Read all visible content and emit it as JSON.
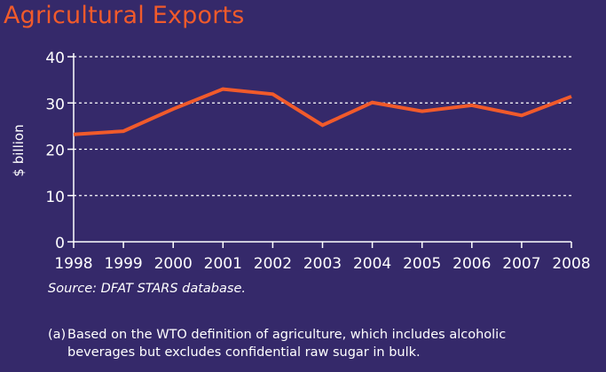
{
  "title": "Agricultural Exports",
  "source": "Source: DFAT STARS database.",
  "footnote": {
    "marker": "(a)",
    "line1": "Based on the WTO definition of agriculture, which includes alcoholic",
    "line2": "beverages but excludes confidential raw sugar in bulk."
  },
  "colors": {
    "background": "#35296a",
    "accent": "#f15a2b",
    "text": "#ffffff"
  },
  "chart_data": {
    "type": "line",
    "title": "Agricultural Exports",
    "ylabel": "$ billion",
    "xlabel": "",
    "x": [
      "1998",
      "1999",
      "2000",
      "2001",
      "2002",
      "2003",
      "2004",
      "2005",
      "2006",
      "2007",
      "2008"
    ],
    "series": [
      {
        "values": [
          23.2,
          23.9,
          28.7,
          33.0,
          31.9,
          25.2,
          30.1,
          28.2,
          29.5,
          27.3,
          31.4
        ]
      }
    ],
    "ylim": [
      0,
      40
    ],
    "yticks": [
      "0",
      "10",
      "20",
      "30",
      "40"
    ],
    "grid": "horizontal dotted",
    "legend": "none"
  }
}
